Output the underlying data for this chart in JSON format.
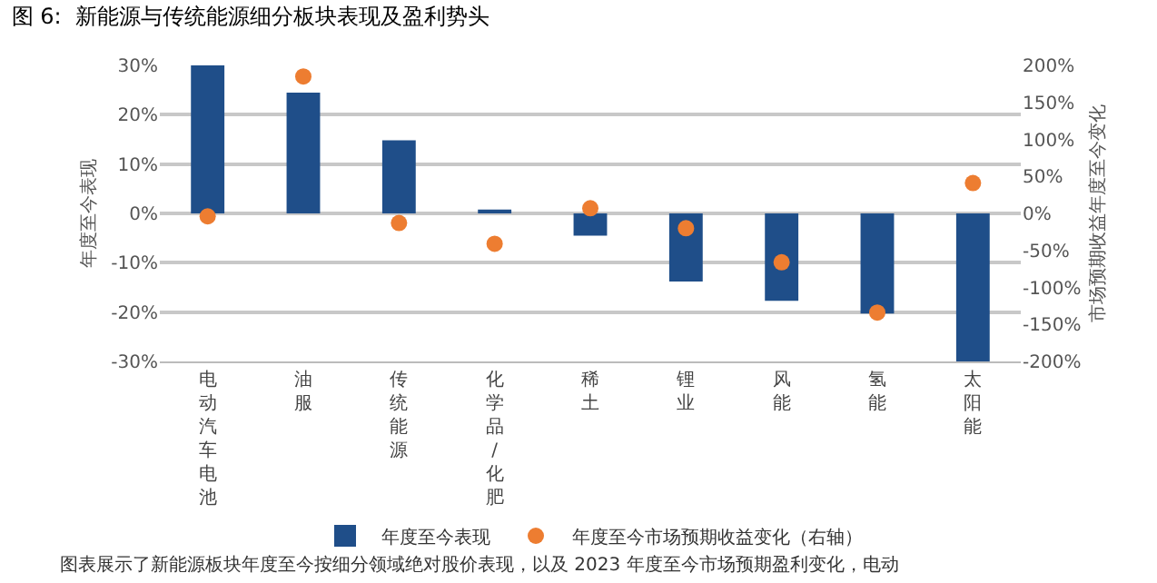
{
  "chart_data": {
    "type": "bar",
    "title": "图 6:  新能源与传统能源细分板块表现及盈利势头",
    "categories": [
      "电动汽车电池",
      "油服",
      "传统能源",
      "化学品/化肥",
      "稀土",
      "锂业",
      "风能",
      "氢能",
      "太阳能"
    ],
    "series": [
      {
        "name": "年度至今表现",
        "color": "#1f4e89",
        "values": [
          30,
          24.5,
          14.8,
          0.8,
          -4.5,
          -13.8,
          -17.7,
          -20.3,
          -30
        ]
      },
      {
        "name": "年度至今市场预期收益变化（右轴）",
        "type": "scatter",
        "axis": "y2",
        "color": "#ed7d31",
        "values": [
          -4,
          185,
          -13,
          -41,
          7,
          -20,
          -66,
          -134,
          41
        ]
      }
    ],
    "ylabel": "年度至今表现",
    "y2label": "市场预期收益年度至今变化",
    "ylim": [
      -30,
      30
    ],
    "yticks": [
      {
        "value": -30,
        "label": "-30%"
      },
      {
        "value": -20,
        "label": "-20%"
      },
      {
        "value": -10,
        "label": "-10%"
      },
      {
        "value": 0,
        "label": "0%"
      },
      {
        "value": 10,
        "label": "10%"
      },
      {
        "value": 20,
        "label": "20%"
      },
      {
        "value": 30,
        "label": "30%"
      }
    ],
    "y2lim": [
      -200,
      200
    ],
    "y2ticks": [
      {
        "value": -200,
        "label": "-200%"
      },
      {
        "value": -150,
        "label": "-150%"
      },
      {
        "value": -100,
        "label": "-100%"
      },
      {
        "value": -50,
        "label": "-50%"
      },
      {
        "value": 0,
        "label": "0%"
      },
      {
        "value": 50,
        "label": "50%"
      },
      {
        "value": 100,
        "label": "100%"
      },
      {
        "value": 150,
        "label": "150%"
      },
      {
        "value": 200,
        "label": "200%"
      }
    ],
    "grid": "y",
    "legend": "bottom",
    "marker": "circle",
    "annotations": [
      "图表展示了新能源板块年度至今按细分领域绝对股价表现，以及 2023 年度至今市场预期盈利变化，电动"
    ]
  }
}
